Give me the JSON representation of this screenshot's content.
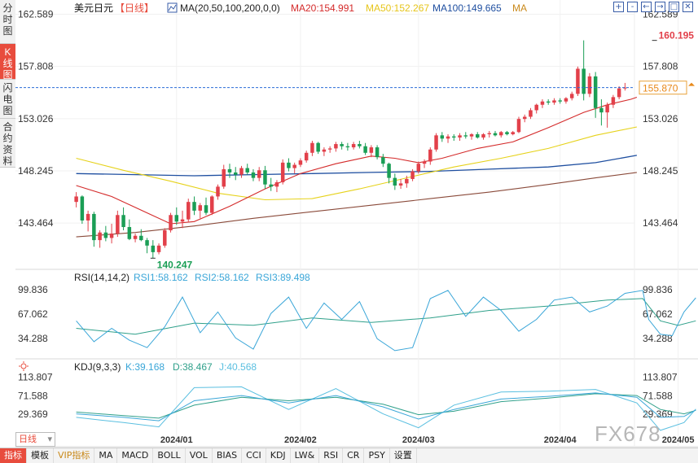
{
  "sidebar": {
    "tabs": [
      {
        "label": "分时图",
        "active": false
      },
      {
        "label": "K线图",
        "active": true
      },
      {
        "label": "闪电图",
        "active": false
      },
      {
        "label": "合约资料",
        "active": false
      }
    ]
  },
  "header": {
    "symbol": "美元日元",
    "period_tag": "【日线】",
    "ma_label": "MA(20,50,100,200,0,0)",
    "ma20": "MA20:154.991",
    "ma50": "MA50:152.267",
    "ma100": "MA100:149.665",
    "ma200": "MA"
  },
  "controls": [
    "+",
    "-",
    "←",
    "→",
    "□",
    "✕"
  ],
  "rsi_header": {
    "title": "RSI(14,14,2)",
    "rsi1": "RSI1:58.162",
    "rsi2": "RSI2:58.162",
    "rsi3": "RSI3:89.498"
  },
  "kdj_header": {
    "title": "KDJ(9,3,3)",
    "k": "K:39.168",
    "d": "D:38.467",
    "j": "J:40.568"
  },
  "period_select": "日线",
  "bottom_tabs": [
    "指标",
    "模板",
    "VIP指标",
    "MA",
    "MACD",
    "BOLL",
    "VOL",
    "BIAS",
    "CCI",
    "KDJ",
    "LW&",
    "RSI",
    "CR",
    "PSY",
    "设置"
  ],
  "watermark": "FX678",
  "colors": {
    "up": "#e2404a",
    "down": "#1a9e55",
    "ma20": "#d42a2a",
    "ma50": "#e6d21a",
    "ma100": "#1f4fa0",
    "ma200": "#8a4a3a",
    "rsi": "#3aa6d8",
    "kdj_k": "#3aa6d8",
    "kdj_d": "#2fa08a",
    "kdj_j": "#5abfe0",
    "accent": "#e84c3d"
  },
  "chart_data": {
    "type": "candlestick",
    "price_axis": {
      "ticks": [
        "162.589",
        "157.808",
        "153.026",
        "148.245",
        "143.464"
      ],
      "range": [
        139.3,
        163.3
      ]
    },
    "x_ticks": [
      "2024/01",
      "2024/02",
      "2024/03",
      "2024/04",
      "2024/05"
    ],
    "x_tick_index": [
      17,
      38,
      58,
      82,
      102
    ],
    "last_price": "155.870",
    "last_price_value": 155.87,
    "max_label": "160.195",
    "max_value": 160.195,
    "max_index": 98,
    "min_label": "140.247",
    "min_value": 140.247,
    "min_index": 13,
    "candles": [
      [
        145.4,
        146.3,
        144.9,
        145.9
      ],
      [
        145.9,
        146.0,
        143.4,
        143.7
      ],
      [
        143.7,
        144.6,
        142.7,
        144.3
      ],
      [
        144.3,
        144.5,
        141.3,
        141.9
      ],
      [
        141.9,
        142.8,
        141.2,
        142.6
      ],
      [
        142.6,
        143.2,
        141.8,
        142.1
      ],
      [
        142.1,
        143.4,
        141.6,
        142.5
      ],
      [
        142.5,
        144.6,
        142.2,
        144.2
      ],
      [
        144.2,
        144.9,
        142.8,
        143.1
      ],
      [
        143.1,
        143.8,
        141.9,
        142.0
      ],
      [
        142.0,
        142.5,
        141.7,
        142.3
      ],
      [
        142.3,
        142.9,
        141.8,
        141.9
      ],
      [
        141.9,
        142.1,
        140.7,
        141.4
      ],
      [
        141.4,
        141.9,
        140.25,
        140.8
      ],
      [
        140.8,
        141.6,
        140.6,
        141.4
      ],
      [
        141.4,
        143.0,
        141.2,
        142.8
      ],
      [
        142.8,
        144.4,
        142.6,
        144.2
      ],
      [
        144.2,
        144.9,
        143.3,
        143.6
      ],
      [
        143.6,
        144.6,
        143.0,
        143.8
      ],
      [
        143.8,
        145.7,
        143.6,
        145.4
      ],
      [
        145.4,
        145.9,
        144.2,
        144.6
      ],
      [
        144.6,
        145.3,
        143.9,
        145.1
      ],
      [
        145.1,
        145.8,
        144.2,
        144.4
      ],
      [
        144.4,
        146.0,
        144.2,
        145.9
      ],
      [
        145.9,
        147.0,
        145.6,
        146.8
      ],
      [
        146.8,
        148.8,
        146.6,
        148.4
      ],
      [
        148.4,
        148.9,
        147.6,
        148.1
      ],
      [
        148.1,
        148.6,
        147.4,
        147.9
      ],
      [
        147.9,
        148.7,
        147.6,
        148.5
      ],
      [
        148.5,
        148.9,
        147.9,
        148.1
      ],
      [
        148.1,
        148.4,
        147.3,
        147.6
      ],
      [
        147.6,
        148.6,
        147.3,
        148.3
      ],
      [
        148.3,
        148.7,
        146.6,
        147.0
      ],
      [
        147.0,
        147.6,
        146.4,
        146.8
      ],
      [
        146.8,
        147.4,
        146.3,
        147.2
      ],
      [
        147.2,
        149.3,
        147.0,
        149.0
      ],
      [
        149.0,
        149.4,
        148.2,
        148.5
      ],
      [
        148.5,
        149.0,
        148.0,
        148.8
      ],
      [
        148.8,
        149.4,
        148.6,
        149.2
      ],
      [
        149.2,
        150.1,
        149.0,
        149.9
      ],
      [
        149.9,
        151.0,
        149.6,
        150.8
      ],
      [
        150.8,
        150.9,
        149.8,
        150.0
      ],
      [
        150.0,
        150.4,
        149.6,
        150.2
      ],
      [
        150.2,
        150.5,
        149.9,
        150.3
      ],
      [
        150.3,
        150.9,
        150.0,
        150.7
      ],
      [
        150.7,
        150.9,
        150.2,
        150.5
      ],
      [
        150.5,
        150.8,
        150.1,
        150.4
      ],
      [
        150.4,
        150.9,
        150.2,
        150.7
      ],
      [
        150.7,
        151.0,
        150.3,
        150.5
      ],
      [
        150.5,
        150.8,
        149.7,
        149.9
      ],
      [
        149.9,
        150.6,
        149.5,
        150.4
      ],
      [
        150.4,
        150.6,
        149.3,
        149.5
      ],
      [
        149.5,
        149.8,
        148.6,
        148.9
      ],
      [
        148.9,
        149.0,
        147.1,
        147.6
      ],
      [
        147.6,
        148.0,
        146.5,
        146.9
      ],
      [
        146.9,
        147.5,
        146.6,
        147.1
      ],
      [
        147.1,
        147.8,
        146.7,
        147.5
      ],
      [
        147.5,
        148.4,
        147.3,
        148.2
      ],
      [
        148.2,
        149.1,
        148.0,
        148.9
      ],
      [
        148.9,
        149.3,
        148.5,
        149.1
      ],
      [
        149.1,
        150.4,
        148.8,
        150.2
      ],
      [
        150.2,
        151.7,
        150.0,
        151.5
      ],
      [
        151.5,
        151.8,
        150.9,
        151.2
      ],
      [
        151.2,
        151.6,
        150.8,
        151.4
      ],
      [
        151.4,
        151.6,
        151.0,
        151.3
      ],
      [
        151.3,
        151.7,
        151.0,
        151.5
      ],
      [
        151.5,
        151.8,
        151.2,
        151.4
      ],
      [
        151.4,
        151.7,
        151.1,
        151.6
      ],
      [
        151.6,
        151.8,
        151.2,
        151.3
      ],
      [
        151.3,
        151.7,
        151.1,
        151.6
      ],
      [
        151.6,
        151.9,
        151.3,
        151.7
      ],
      [
        151.7,
        151.9,
        151.4,
        151.5
      ],
      [
        151.5,
        151.9,
        151.3,
        151.8
      ],
      [
        151.8,
        151.9,
        151.5,
        151.6
      ],
      [
        151.6,
        151.9,
        151.5,
        151.8
      ],
      [
        151.8,
        153.2,
        151.7,
        153.0
      ],
      [
        153.0,
        153.4,
        152.7,
        153.2
      ],
      [
        153.2,
        154.0,
        153.0,
        153.8
      ],
      [
        153.8,
        154.4,
        153.5,
        154.3
      ],
      [
        154.3,
        154.8,
        154.0,
        154.6
      ],
      [
        154.6,
        154.8,
        154.3,
        154.5
      ],
      [
        154.5,
        154.9,
        154.3,
        154.7
      ],
      [
        154.7,
        154.9,
        154.4,
        154.6
      ],
      [
        154.6,
        155.0,
        154.4,
        154.9
      ],
      [
        154.9,
        155.5,
        154.7,
        155.3
      ],
      [
        155.3,
        157.8,
        155.1,
        157.6
      ],
      [
        157.6,
        160.2,
        154.7,
        155.3
      ],
      [
        155.3,
        157.2,
        155.0,
        156.9
      ],
      [
        156.9,
        157.3,
        153.1,
        154.0
      ],
      [
        154.0,
        154.8,
        152.4,
        153.6
      ],
      [
        153.6,
        154.5,
        152.2,
        154.3
      ],
      [
        154.3,
        155.2,
        154.0,
        155.0
      ],
      [
        155.0,
        156.0,
        154.8,
        155.8
      ],
      [
        155.8,
        156.3,
        155.6,
        155.87
      ]
    ],
    "ma20": [
      [
        0,
        146.9
      ],
      [
        6,
        145.9
      ],
      [
        12,
        144.4
      ],
      [
        16,
        143.4
      ],
      [
        20,
        143.6
      ],
      [
        26,
        145.0
      ],
      [
        32,
        146.6
      ],
      [
        38,
        148.0
      ],
      [
        44,
        148.9
      ],
      [
        50,
        149.6
      ],
      [
        54,
        149.4
      ],
      [
        58,
        149.0
      ],
      [
        62,
        149.4
      ],
      [
        68,
        150.3
      ],
      [
        74,
        150.9
      ],
      [
        80,
        152.2
      ],
      [
        86,
        153.6
      ],
      [
        90,
        154.3
      ],
      [
        94,
        154.8
      ],
      [
        95,
        154.99
      ]
    ],
    "ma50": [
      [
        0,
        149.4
      ],
      [
        8,
        148.3
      ],
      [
        16,
        147.3
      ],
      [
        24,
        146.2
      ],
      [
        32,
        145.6
      ],
      [
        40,
        145.7
      ],
      [
        48,
        146.6
      ],
      [
        56,
        147.6
      ],
      [
        64,
        148.6
      ],
      [
        72,
        149.4
      ],
      [
        80,
        150.3
      ],
      [
        88,
        151.5
      ],
      [
        95,
        152.27
      ]
    ],
    "ma100": [
      [
        0,
        148.0
      ],
      [
        10,
        147.9
      ],
      [
        20,
        147.8
      ],
      [
        30,
        147.9
      ],
      [
        40,
        148.0
      ],
      [
        50,
        148.1
      ],
      [
        60,
        148.2
      ],
      [
        70,
        148.4
      ],
      [
        80,
        148.6
      ],
      [
        88,
        149.0
      ],
      [
        95,
        149.67
      ]
    ],
    "ma200": [
      [
        0,
        142.2
      ],
      [
        10,
        142.6
      ],
      [
        20,
        143.2
      ],
      [
        30,
        143.9
      ],
      [
        40,
        144.5
      ],
      [
        50,
        145.1
      ],
      [
        60,
        145.7
      ],
      [
        70,
        146.3
      ],
      [
        80,
        147.0
      ],
      [
        88,
        147.6
      ],
      [
        95,
        148.1
      ]
    ],
    "rsi": {
      "ticks": [
        "99.836",
        "67.062",
        "34.288"
      ],
      "range": [
        8,
        112
      ],
      "rsi_fast": [
        [
          0,
          58
        ],
        [
          3,
          30
        ],
        [
          6,
          48
        ],
        [
          9,
          32
        ],
        [
          12,
          22
        ],
        [
          15,
          50
        ],
        [
          18,
          90
        ],
        [
          21,
          42
        ],
        [
          24,
          70
        ],
        [
          27,
          35
        ],
        [
          30,
          20
        ],
        [
          33,
          68
        ],
        [
          36,
          90
        ],
        [
          39,
          48
        ],
        [
          42,
          82
        ],
        [
          45,
          60
        ],
        [
          48,
          84
        ],
        [
          51,
          34
        ],
        [
          54,
          18
        ],
        [
          57,
          22
        ],
        [
          60,
          88
        ],
        [
          63,
          99
        ],
        [
          66,
          64
        ],
        [
          69,
          90
        ],
        [
          72,
          72
        ],
        [
          75,
          44
        ],
        [
          78,
          60
        ],
        [
          81,
          86
        ],
        [
          84,
          90
        ],
        [
          87,
          70
        ],
        [
          90,
          78
        ],
        [
          93,
          95
        ],
        [
          96,
          99
        ],
        [
          97,
          60
        ],
        [
          99,
          40
        ],
        [
          101,
          38
        ],
        [
          103,
          70
        ],
        [
          105,
          89
        ]
      ],
      "rsi_slow": [
        [
          0,
          48
        ],
        [
          10,
          40
        ],
        [
          20,
          55
        ],
        [
          30,
          52
        ],
        [
          40,
          62
        ],
        [
          50,
          56
        ],
        [
          60,
          62
        ],
        [
          70,
          72
        ],
        [
          80,
          78
        ],
        [
          90,
          86
        ],
        [
          96,
          88
        ],
        [
          99,
          58
        ],
        [
          102,
          52
        ],
        [
          105,
          58
        ]
      ]
    },
    "kdj": {
      "ticks": [
        "113.807",
        "71.588",
        "29.369"
      ],
      "range": [
        -10,
        130
      ],
      "k": [
        [
          0,
          30
        ],
        [
          8,
          22
        ],
        [
          14,
          14
        ],
        [
          20,
          60
        ],
        [
          28,
          72
        ],
        [
          36,
          55
        ],
        [
          44,
          72
        ],
        [
          52,
          46
        ],
        [
          58,
          18
        ],
        [
          64,
          40
        ],
        [
          72,
          64
        ],
        [
          80,
          70
        ],
        [
          88,
          78
        ],
        [
          95,
          68
        ],
        [
          99,
          22
        ],
        [
          103,
          24
        ],
        [
          105,
          39
        ]
      ],
      "d": [
        [
          0,
          34
        ],
        [
          8,
          26
        ],
        [
          14,
          20
        ],
        [
          20,
          50
        ],
        [
          28,
          68
        ],
        [
          36,
          60
        ],
        [
          44,
          68
        ],
        [
          52,
          52
        ],
        [
          58,
          28
        ],
        [
          64,
          36
        ],
        [
          72,
          58
        ],
        [
          80,
          66
        ],
        [
          88,
          76
        ],
        [
          95,
          72
        ],
        [
          99,
          40
        ],
        [
          103,
          30
        ],
        [
          105,
          38
        ]
      ],
      "j": [
        [
          0,
          22
        ],
        [
          8,
          10
        ],
        [
          14,
          0
        ],
        [
          20,
          90
        ],
        [
          28,
          92
        ],
        [
          36,
          40
        ],
        [
          44,
          88
        ],
        [
          52,
          30
        ],
        [
          58,
          -2
        ],
        [
          64,
          50
        ],
        [
          72,
          80
        ],
        [
          80,
          82
        ],
        [
          88,
          86
        ],
        [
          95,
          55
        ],
        [
          99,
          -8
        ],
        [
          103,
          10
        ],
        [
          105,
          41
        ]
      ]
    }
  }
}
